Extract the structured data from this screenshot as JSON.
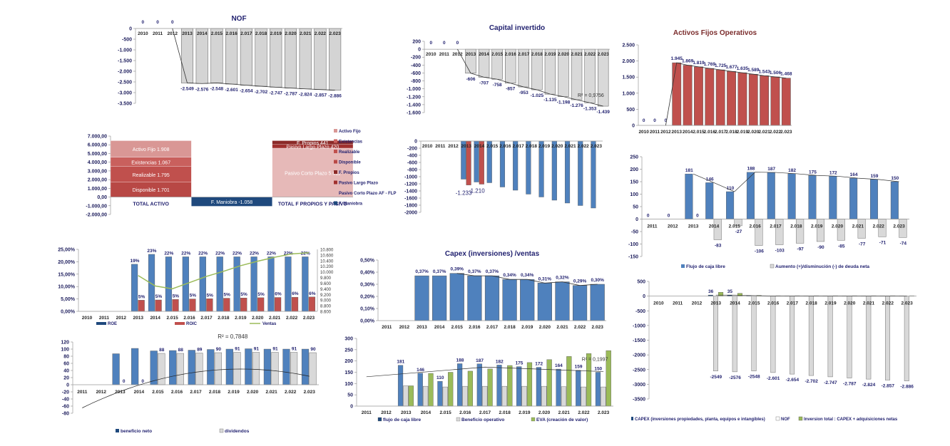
{
  "chart_data": [
    {
      "id": "nof",
      "type": "bar",
      "title": "NOF",
      "categories": [
        "2010",
        "2011",
        "2012",
        "2013",
        "2014",
        "2.015",
        "2.016",
        "2.017",
        "2.018",
        "2.019",
        "2.020",
        "2.021",
        "2.022",
        "2.023"
      ],
      "values": [
        0,
        0,
        0,
        -2549,
        -2576,
        -2548,
        -2601,
        -2654,
        -2702,
        -2747,
        -2787,
        -2824,
        -2857,
        -2886
      ],
      "data_labels": [
        "0",
        "0",
        "0",
        "-2.549",
        "-2.576",
        "-2.548",
        "-2.601",
        "-2.654",
        "-2.702",
        "-2.747",
        "-2.787",
        "-2.824",
        "-2.857",
        "-2.886"
      ],
      "ylim": [
        -3500,
        0
      ],
      "yticks": [
        "0",
        "-500",
        "-1.000",
        "-1.500",
        "-2.000",
        "-2.500",
        "-3.000",
        "-3.500"
      ],
      "trendline": true,
      "bar_color": "#d4d4d4",
      "label_color": "#1f1f6e"
    },
    {
      "id": "capital-invertido",
      "type": "bar",
      "title": "Capital invertido",
      "categories": [
        "2010",
        "2011",
        "2012",
        "2013",
        "2014",
        "2.015",
        "2.016",
        "2.017",
        "2.018",
        "2.019",
        "2.020",
        "2.021",
        "2.022",
        "2.023"
      ],
      "values": [
        0,
        0,
        0,
        -606,
        -707,
        -758,
        -857,
        -953,
        -1025,
        -1135,
        -1198,
        -1276,
        -1353,
        -1439
      ],
      "data_labels": [
        "0",
        "0",
        "0",
        "-606",
        "-707",
        "-758",
        "-857",
        "-953",
        "-1.025",
        "-1.135",
        "-1.198",
        "-1.276",
        "-1.353",
        "-1.439"
      ],
      "ylim": [
        -1600,
        200
      ],
      "yticks": [
        "200",
        "0",
        "-200",
        "-400",
        "-600",
        "-800",
        "-1.000",
        "-1.200",
        "-1.400",
        "-1.600"
      ],
      "trendline": true,
      "r2_label": "R² = 0,9756",
      "bar_color": "#d9d9d9"
    },
    {
      "id": "activos-fijos-operativos",
      "type": "bar",
      "title": "Activos Fijos Operativos",
      "categories": [
        "2010",
        "2011",
        "2012",
        "2013",
        "2014",
        "2.015",
        "2.016",
        "2.017",
        "2.018",
        "2.019",
        "2.020",
        "2.021",
        "2.022",
        "2.023"
      ],
      "values": [
        0,
        0,
        0,
        1945,
        1869,
        1819,
        1769,
        1725,
        1677,
        1635,
        1589,
        1543,
        1506,
        1468
      ],
      "data_labels": [
        "0",
        "0",
        "0",
        "1.945",
        "1.869",
        "1.819",
        "1.769",
        "1.725",
        "1.677",
        "1.635",
        "1.589",
        "1.543",
        "1.506",
        "1.468"
      ],
      "ylim": [
        0,
        2500
      ],
      "yticks": [
        "2.500",
        "2.000",
        "1.500",
        "1.000",
        "500",
        "0"
      ],
      "trendline": true,
      "bar_color": "#c0504d",
      "title_color": "#7b2c2c"
    },
    {
      "id": "balance",
      "type": "bar",
      "subtype": "stacked",
      "categories": [
        "TOTAL ACTIVO",
        "",
        "TOTAL F PROPIOS Y PASIVO"
      ],
      "ylim": [
        -2000,
        7000
      ],
      "yticks": [
        "7.000,00",
        "6.000,00",
        "5.000,00",
        "4.000,00",
        "3.000,00",
        "2.000,00",
        "1.000,00",
        "0,00",
        "-1.000,00",
        "-2.000,00"
      ],
      "stacks": [
        {
          "category": "TOTAL ACTIVO",
          "segments": [
            {
              "name": "Disponible",
              "value": 1701,
              "label": "Disponible 1.701",
              "color": "#b84845"
            },
            {
              "name": "Realizable",
              "value": 1795,
              "label": "Realizable 1.795",
              "color": "#c0504d"
            },
            {
              "name": "Existencias",
              "value": 1067,
              "label": "Existencias 1.067",
              "color": "#c9605d"
            },
            {
              "name": "Activo Fijo",
              "value": 1908,
              "label": "Activo Fijo 1.908",
              "color": "#d99795"
            }
          ]
        },
        {
          "category": "",
          "segments": [
            {
              "name": "F. Maniobra",
              "value": -1058,
              "label": "F. Maniobra -1.058",
              "color": "#1f497d"
            }
          ]
        },
        {
          "category": "TOTAL F PROPIOS Y PASIVO",
          "segments": [
            {
              "name": "Pasivo Corto Plazo",
              "value": 5611,
              "label": "Pasivo Corto Plazo 5.611",
              "color": "#e6b9b8"
            },
            {
              "name": "Pasivo Largo Plazo",
              "value": 420,
              "label": "Pasivo Largo Plazo 420",
              "color": "#a0302e"
            },
            {
              "name": "F. Propios",
              "value": 441,
              "label": "F. Propios 441",
              "color": "#8b2a28"
            }
          ]
        }
      ],
      "legend": [
        "Activo Fijo",
        "Existencias",
        "Realizable",
        "Disponible",
        "F. Propios",
        "Pasivo Largo Plazo",
        "Pasivo Corto Plazo AF - FLP",
        "F. Maniobra"
      ],
      "legend_colors": [
        "#d99795",
        "#c9605d",
        "#c0504d",
        "#b84845",
        "#8b2a28",
        "#a0302e",
        "#e6b9b8",
        "#1f497d"
      ]
    },
    {
      "id": "deuda-chart",
      "type": "bar",
      "categories": [
        "2010",
        "2011",
        "2012",
        "2013",
        "2014",
        "2.015",
        "2.016",
        "2.017",
        "2.018",
        "2.019",
        "2.020",
        "2.021",
        "2.022",
        "2.023"
      ],
      "series": [
        {
          "name": "Serie 1",
          "values": [
            0,
            0,
            0,
            -1070,
            -1150,
            -1170,
            -1290,
            -1380,
            -1490,
            -1570,
            -1660,
            -1740,
            -1810,
            -1880
          ],
          "color": "#4f81bd"
        },
        {
          "name": "Serie 2",
          "values": [
            0,
            0,
            0,
            -1233,
            -1210,
            null,
            null,
            null,
            null,
            null,
            null,
            null,
            null,
            null
          ],
          "color": "#c0504d"
        }
      ],
      "data_labels": [
        "-1.233",
        "-1.210"
      ],
      "ylim": [
        -2000,
        0
      ],
      "yticks": [
        "0",
        "-200",
        "-400",
        "-600",
        "-800",
        "-1000",
        "-1200",
        "-1400",
        "-1600",
        "-1800",
        "-2000"
      ]
    },
    {
      "id": "flujo-caja",
      "type": "bar",
      "categories": [
        "2011",
        "2012",
        "2013",
        "2014",
        "2.015",
        "2.016",
        "2.017",
        "2.018",
        "2.019",
        "2.020",
        "2.021",
        "2.022",
        "2.023"
      ],
      "series": [
        {
          "name": "Flujo de caja libre",
          "values": [
            0,
            0,
            181,
            146,
            110,
            188,
            187,
            182,
            175,
            172,
            164,
            159,
            150
          ],
          "labels": [
            "0",
            "0",
            "181",
            "146",
            "110",
            "188",
            "187",
            "182",
            "175",
            "172",
            "164",
            "159",
            "150"
          ],
          "color": "#4f81bd"
        },
        {
          "name": "Aumento (+)/disminución (-) de deuda neta",
          "values": [
            null,
            null,
            0,
            -83,
            -27,
            -106,
            -103,
            -97,
            -90,
            -85,
            -77,
            -71,
            -74
          ],
          "labels": [
            "",
            "",
            "0",
            "-83",
            "-27",
            "-106",
            "-103",
            "-97",
            "-90",
            "-85",
            "-77",
            "-71",
            "-74"
          ],
          "color": "#d9d9d9"
        }
      ],
      "ylim": [
        -150,
        250
      ],
      "yticks": [
        "250",
        "200",
        "150",
        "100",
        "50",
        "0",
        "-50",
        "-100",
        "-150"
      ],
      "trendline": true,
      "legend": [
        "Flujo de caja libre",
        "Aumento (+)/disminución (-) de deuda neta"
      ]
    },
    {
      "id": "roe-roic",
      "type": "bar",
      "categories": [
        "2010",
        "2011",
        "2012",
        "2013",
        "2014",
        "2.015",
        "2.016",
        "2.017",
        "2.018",
        "2.019",
        "2.020",
        "2.021",
        "2.022",
        "2.023"
      ],
      "series": [
        {
          "name": "ROE",
          "values": [
            null,
            null,
            null,
            19,
            23,
            22,
            22,
            22,
            22,
            22,
            22,
            22,
            22,
            22
          ],
          "labels": [
            "",
            "",
            "",
            "19%",
            "23%",
            "22%",
            "22%",
            "22%",
            "22%",
            "22%",
            "22%",
            "22%",
            "22%",
            "22%"
          ],
          "color": "#4f81bd"
        },
        {
          "name": "ROIC",
          "values": [
            null,
            null,
            null,
            4.5,
            4.6,
            4.8,
            5.0,
            5.1,
            5.3,
            5.4,
            5.5,
            5.6,
            5.7,
            5.8
          ],
          "labels": [
            "",
            "",
            "",
            "5%",
            "5%",
            "5%",
            "5%",
            "5%",
            "5%",
            "5%",
            "5%",
            "6%",
            "6%",
            "6%"
          ],
          "color": "#c0504d"
        },
        {
          "name": "Ventas",
          "type": "line",
          "axis": "right",
          "values": [
            null,
            null,
            null,
            9870,
            9500,
            9400,
            9620,
            9840,
            10020,
            10220,
            10380,
            10520,
            10640,
            10680
          ],
          "color": "#9bbb59"
        }
      ],
      "ylim": [
        0,
        25
      ],
      "yticks": [
        "25,00%",
        "20,00%",
        "15,00%",
        "10,00%",
        "5,00%",
        "0,00%"
      ],
      "y2lim": [
        8600,
        10800
      ],
      "y2ticks": [
        "10.800",
        "10.600",
        "10.400",
        "10.200",
        "10.000",
        "9.800",
        "9.600",
        "9.400",
        "9.200",
        "9.000",
        "8.800",
        "8.600"
      ],
      "legend": [
        "ROE",
        "ROIC",
        "Ventas"
      ]
    },
    {
      "id": "capex-ventas",
      "type": "bar",
      "title": "Capex (inversiones) /ventas",
      "categories": [
        "2011",
        "2012",
        "2013",
        "2014",
        "2.015",
        "2.016",
        "2.017",
        "2.018",
        "2.019",
        "2.020",
        "2.021",
        "2.022",
        "2.023"
      ],
      "values": [
        null,
        null,
        0.37,
        0.37,
        0.39,
        0.37,
        0.37,
        0.34,
        0.34,
        0.31,
        0.32,
        0.29,
        0.3
      ],
      "data_labels": [
        "",
        "",
        "0,37%",
        "0,37%",
        "0,39%",
        "0,37%",
        "0,37%",
        "0,34%",
        "0,34%",
        "0,31%",
        "0,32%",
        "0,29%",
        "0,30%"
      ],
      "ylim": [
        0,
        0.5
      ],
      "yticks": [
        "0,50%",
        "0,40%",
        "0,30%",
        "0,20%",
        "0,10%",
        "0,00%"
      ],
      "trendline": true,
      "bar_color": "#4f81bd"
    },
    {
      "id": "capex-nof",
      "type": "bar",
      "categories": [
        "2010",
        "2011",
        "2012",
        "2013",
        "2014",
        "2.015",
        "2.016",
        "2.017",
        "2.018",
        "2.019",
        "2.020",
        "2.021",
        "2.022",
        "2.023"
      ],
      "series": [
        {
          "name": "CAPEX (inversiones propiedades, planta, equipos e intangibles)",
          "values": [
            null,
            null,
            null,
            36,
            35,
            18,
            8,
            8,
            8,
            8,
            8,
            8,
            8,
            8
          ],
          "labels": [
            "",
            "",
            "",
            "36",
            "35",
            "",
            "",
            "",
            "",
            "",
            "",
            "",
            "",
            ""
          ],
          "color": "#1f497d"
        },
        {
          "name": "NOF",
          "values": [
            null,
            null,
            null,
            -2549,
            -2576,
            -2548,
            -2601,
            -2654,
            -2702,
            -2747,
            -2787,
            -2824,
            -2857,
            -2886
          ],
          "labels": [
            "",
            "",
            "",
            "-2549",
            "-2576",
            "-2548",
            "-2.601",
            "-2.654",
            "-2.702",
            "-2.747",
            "-2.787",
            "-2.824",
            "-2.857",
            "-2.886"
          ],
          "color": "#d9d9d9"
        },
        {
          "name": "Inversion total : CAPEX + adquisiciones netas",
          "values": [
            null,
            null,
            null,
            130,
            95,
            25,
            12,
            12,
            12,
            12,
            12,
            12,
            12,
            12
          ],
          "color": "#9bbb59"
        }
      ],
      "ylim": [
        -3500,
        500
      ],
      "yticks": [
        "500",
        "0",
        "-500",
        "-1000",
        "-1500",
        "-2000",
        "-2500",
        "-3000",
        "-3500"
      ],
      "trendline": true,
      "legend": [
        "CAPEX (inversiones propiedades, planta, equipos e intangibles)",
        "NOF",
        "Inversion total : CAPEX + adquisiciones netas"
      ]
    },
    {
      "id": "beneficio-dividendos",
      "type": "bar",
      "categories": [
        "2011",
        "2012",
        "2013",
        "2014",
        "2.015",
        "2.016",
        "2.017",
        "2.018",
        "2.019",
        "2.020",
        "2.021",
        "2.022",
        "2.023"
      ],
      "series": [
        {
          "name": "beneficio neto",
          "values": [
            null,
            null,
            87,
            102,
            95,
            96,
            97,
            99,
            100,
            101,
            100,
            100,
            100
          ],
          "color": "#4f81bd"
        },
        {
          "name": "dividendos",
          "values": [
            null,
            null,
            0,
            0,
            88,
            88,
            89,
            90,
            91,
            91,
            91,
            91,
            90
          ],
          "labels": [
            "",
            "",
            "0",
            "0",
            "88",
            "88",
            "89",
            "90",
            "91",
            "91",
            "91",
            "91",
            "90"
          ],
          "color": "#d9d9d9"
        }
      ],
      "ylim": [
        -80,
        120
      ],
      "yticks": [
        "120",
        "100",
        "80",
        "60",
        "40",
        "20",
        "0",
        "-20",
        "-40",
        "-60",
        "-80"
      ],
      "trendline": "polynomial",
      "r2_label": "R² = 0,7848",
      "legend": [
        "beneficio neto",
        "dividendos"
      ]
    },
    {
      "id": "flujo-eva",
      "type": "bar",
      "categories": [
        "2011",
        "2012",
        "2013",
        "2014",
        "2.015",
        "2.016",
        "2.017",
        "2.018",
        "2.019",
        "2.020",
        "2.021",
        "2.022",
        "2.023"
      ],
      "series": [
        {
          "name": "flujo de caja libre",
          "values": [
            null,
            null,
            181,
            146,
            110,
            188,
            187,
            182,
            175,
            172,
            164,
            159,
            150
          ],
          "labels": [
            "",
            "",
            "181",
            "146",
            "110",
            "188",
            "187",
            "182",
            "175",
            "172",
            "164",
            "159",
            "150"
          ],
          "color": "#4f81bd"
        },
        {
          "name": "Beneficio operativo",
          "values": [
            null,
            null,
            90,
            88,
            85,
            88,
            88,
            88,
            88,
            88,
            86,
            85,
            85
          ],
          "color": "#d9d9d9"
        },
        {
          "name": "EVA (creación de valor)",
          "values": [
            null,
            null,
            90,
            145,
            150,
            155,
            165,
            180,
            193,
            206,
            220,
            233,
            246
          ],
          "color": "#9bbb59"
        }
      ],
      "ylim": [
        0,
        300
      ],
      "yticks": [
        "300",
        "250",
        "200",
        "150",
        "100",
        "50",
        "0"
      ],
      "trendline": true,
      "r2_label": "R² = 0,1997",
      "legend": [
        "flujo de caja libre",
        "Beneficio operativo",
        "EVA (creación de valor)"
      ]
    }
  ]
}
